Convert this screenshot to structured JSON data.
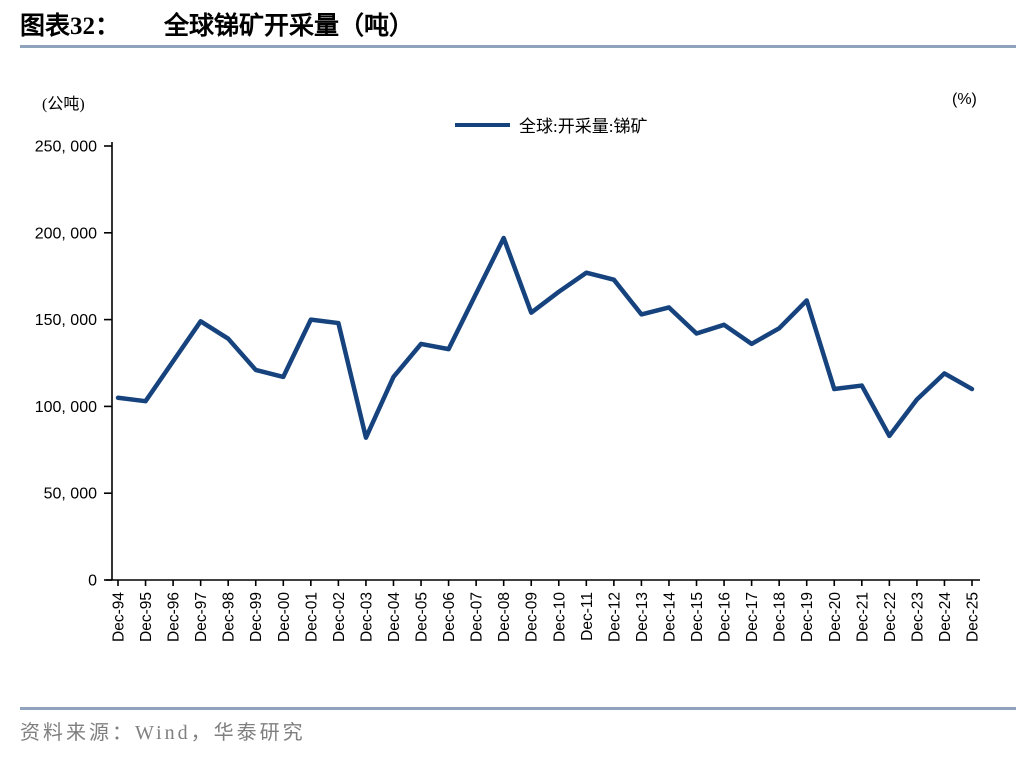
{
  "header": {
    "label": "图表32：",
    "title": "全球锑矿开采量（吨）"
  },
  "footer": {
    "source": "资料来源：Wind，华泰研究"
  },
  "chart_data": {
    "type": "line",
    "title": "全球锑矿开采量（吨）",
    "unit_left": "(公吨)",
    "unit_right": "(%)",
    "xlabel": "",
    "ylabel": "(公吨)",
    "ylim": [
      0,
      250000
    ],
    "y_ticks": [
      0,
      50000,
      100000,
      150000,
      200000,
      250000
    ],
    "y_tick_labels": [
      "0",
      "50, 000",
      "100, 000",
      "150, 000",
      "200, 000",
      "250, 000"
    ],
    "grid": false,
    "legend_position": "top-center",
    "axis_color": "#000000",
    "categories": [
      "Dec-94",
      "Dec-95",
      "Dec-96",
      "Dec-97",
      "Dec-98",
      "Dec-99",
      "Dec-00",
      "Dec-01",
      "Dec-02",
      "Dec-03",
      "Dec-04",
      "Dec-05",
      "Dec-06",
      "Dec-07",
      "Dec-08",
      "Dec-09",
      "Dec-10",
      "Dec-11",
      "Dec-12",
      "Dec-13",
      "Dec-14",
      "Dec-15",
      "Dec-16",
      "Dec-17",
      "Dec-18",
      "Dec-19",
      "Dec-20",
      "Dec-21",
      "Dec-22",
      "Dec-23",
      "Dec-24",
      "Dec-25"
    ],
    "series": [
      {
        "name": "全球:开采量:锑矿",
        "color": "#16437E",
        "values": [
          105000,
          103000,
          126000,
          149000,
          139000,
          121000,
          117000,
          150000,
          148000,
          82000,
          117000,
          136000,
          133000,
          165000,
          197000,
          154000,
          166000,
          177000,
          173000,
          153000,
          157000,
          142000,
          147000,
          136000,
          145000,
          161000,
          110000,
          112000,
          83000,
          104000,
          119000,
          110000
        ]
      }
    ]
  }
}
